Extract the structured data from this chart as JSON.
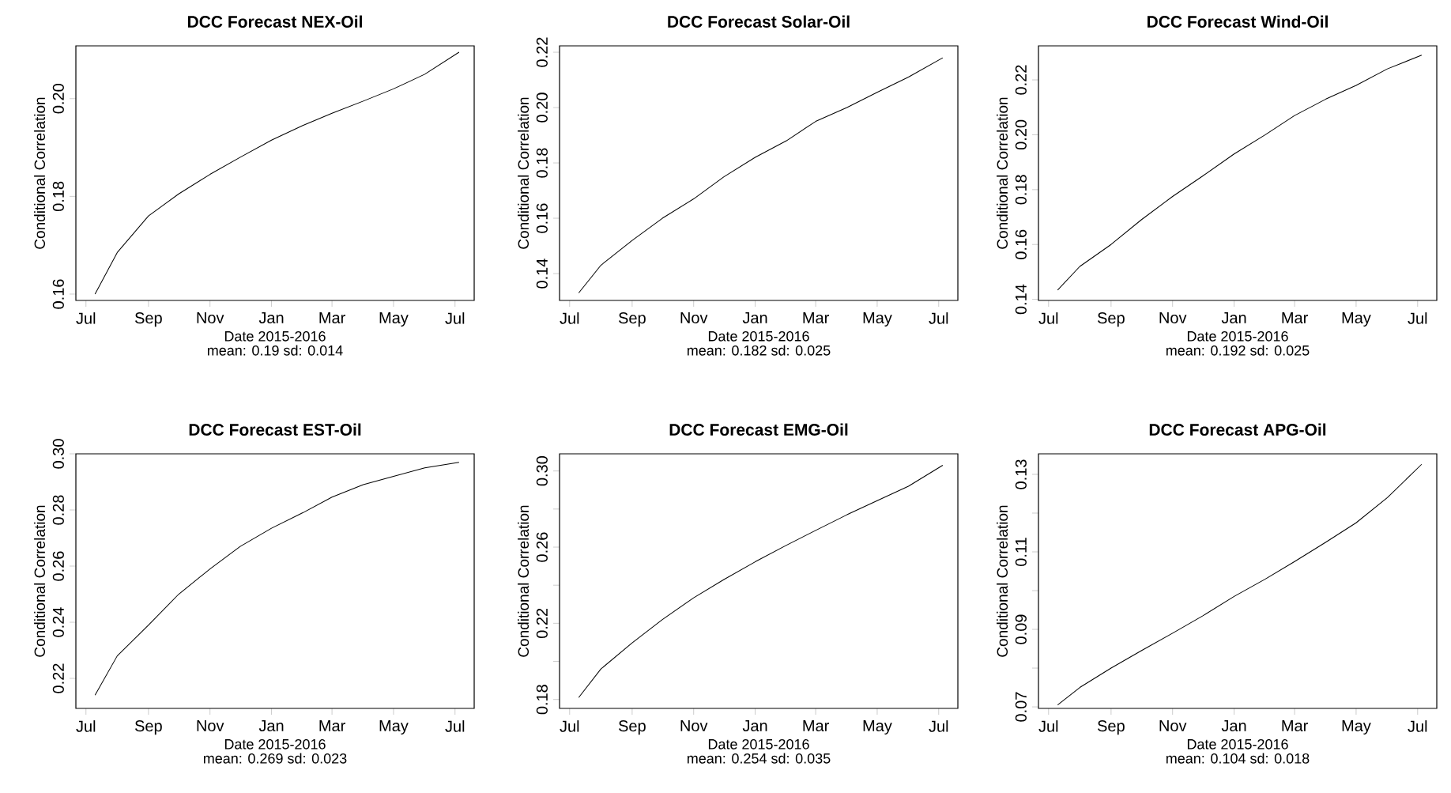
{
  "chart_data": [
    {
      "type": "line",
      "title": "DCC Forecast NEX-Oil",
      "xlabel": "Date 2015-2016",
      "ylabel": "Conditional Correlation",
      "annotations": [
        "mean: 0.19 sd: 0.014"
      ],
      "color": "#000000",
      "x": [
        "2015-07-10",
        "2015-08-01",
        "2015-09-01",
        "2015-10-01",
        "2015-11-01",
        "2015-12-01",
        "2016-01-01",
        "2016-02-01",
        "2016-03-01",
        "2016-04-01",
        "2016-05-01",
        "2016-06-01",
        "2016-07-05"
      ],
      "values": [
        0.16,
        0.1685,
        0.176,
        0.1805,
        0.1845,
        0.188,
        0.1915,
        0.1945,
        0.197,
        0.1995,
        0.202,
        0.205,
        0.2095
      ],
      "xlim": [
        "2015-06-21",
        "2016-07-20"
      ],
      "ylim": [
        0.1587,
        0.2108
      ],
      "xticks": [
        {
          "value": "2015-07-01",
          "label": "Jul"
        },
        {
          "value": "2015-09-01",
          "label": "Sep"
        },
        {
          "value": "2015-11-01",
          "label": "Nov"
        },
        {
          "value": "2016-01-01",
          "label": "Jan"
        },
        {
          "value": "2016-03-01",
          "label": "Mar"
        },
        {
          "value": "2016-05-01",
          "label": "May"
        },
        {
          "value": "2016-07-01",
          "label": "Jul"
        }
      ],
      "yticks": [
        {
          "value": 0.16,
          "label": "0.16"
        },
        {
          "value": 0.18,
          "label": "0.18"
        },
        {
          "value": 0.2,
          "label": "0.20"
        }
      ]
    },
    {
      "type": "line",
      "title": "DCC Forecast Solar-Oil",
      "xlabel": "Date 2015-2016",
      "ylabel": "Conditional Correlation",
      "annotations": [
        "mean: 0.182 sd: 0.025"
      ],
      "color": "#000000",
      "x": [
        "2015-07-10",
        "2015-08-01",
        "2015-09-01",
        "2015-10-01",
        "2015-11-01",
        "2015-12-01",
        "2016-01-01",
        "2016-02-01",
        "2016-03-01",
        "2016-04-01",
        "2016-05-01",
        "2016-06-01",
        "2016-07-05"
      ],
      "values": [
        0.133,
        0.143,
        0.152,
        0.16,
        0.167,
        0.175,
        0.182,
        0.188,
        0.195,
        0.2,
        0.2055,
        0.211,
        0.218
      ],
      "xlim": [
        "2015-06-21",
        "2016-07-20"
      ],
      "ylim": [
        0.1303,
        0.2223
      ],
      "xticks": [
        {
          "value": "2015-07-01",
          "label": "Jul"
        },
        {
          "value": "2015-09-01",
          "label": "Sep"
        },
        {
          "value": "2015-11-01",
          "label": "Nov"
        },
        {
          "value": "2016-01-01",
          "label": "Jan"
        },
        {
          "value": "2016-03-01",
          "label": "Mar"
        },
        {
          "value": "2016-05-01",
          "label": "May"
        },
        {
          "value": "2016-07-01",
          "label": "Jul"
        }
      ],
      "yticks": [
        {
          "value": 0.14,
          "label": "0.14"
        },
        {
          "value": 0.16,
          "label": "0.16"
        },
        {
          "value": 0.18,
          "label": "0.18"
        },
        {
          "value": 0.2,
          "label": "0.20"
        },
        {
          "value": 0.22,
          "label": "0.22"
        }
      ]
    },
    {
      "type": "line",
      "title": "DCC Forecast Wind-Oil",
      "xlabel": "Date 2015-2016",
      "ylabel": "Conditional Correlation",
      "annotations": [
        "mean: 0.192 sd: 0.025"
      ],
      "color": "#000000",
      "x": [
        "2015-07-10",
        "2015-08-01",
        "2015-09-01",
        "2015-10-01",
        "2015-11-01",
        "2015-12-01",
        "2016-01-01",
        "2016-02-01",
        "2016-03-01",
        "2016-04-01",
        "2016-05-01",
        "2016-06-01",
        "2016-07-05"
      ],
      "values": [
        0.1434,
        0.152,
        0.16,
        0.169,
        0.1775,
        0.185,
        0.193,
        0.2,
        0.207,
        0.213,
        0.218,
        0.224,
        0.229
      ],
      "xlim": [
        "2015-06-21",
        "2016-07-20"
      ],
      "ylim": [
        0.1396,
        0.2324
      ],
      "xticks": [
        {
          "value": "2015-07-01",
          "label": "Jul"
        },
        {
          "value": "2015-09-01",
          "label": "Sep"
        },
        {
          "value": "2015-11-01",
          "label": "Nov"
        },
        {
          "value": "2016-01-01",
          "label": "Jan"
        },
        {
          "value": "2016-03-01",
          "label": "Mar"
        },
        {
          "value": "2016-05-01",
          "label": "May"
        },
        {
          "value": "2016-07-01",
          "label": "Jul"
        }
      ],
      "yticks": [
        {
          "value": 0.14,
          "label": "0.14"
        },
        {
          "value": 0.16,
          "label": "0.16"
        },
        {
          "value": 0.18,
          "label": "0.18"
        },
        {
          "value": 0.2,
          "label": "0.20"
        },
        {
          "value": 0.22,
          "label": "0.22"
        }
      ]
    },
    {
      "type": "line",
      "title": "DCC Forecast EST-Oil",
      "xlabel": "Date 2015-2016",
      "ylabel": "Conditional Correlation",
      "annotations": [
        "mean: 0.269 sd: 0.023"
      ],
      "color": "#000000",
      "x": [
        "2015-07-10",
        "2015-08-01",
        "2015-09-01",
        "2015-10-01",
        "2015-11-01",
        "2015-12-01",
        "2016-01-01",
        "2016-02-01",
        "2016-03-01",
        "2016-04-01",
        "2016-05-01",
        "2016-06-01",
        "2016-07-05"
      ],
      "values": [
        0.214,
        0.228,
        0.239,
        0.25,
        0.259,
        0.267,
        0.2735,
        0.279,
        0.2846,
        0.289,
        0.292,
        0.295,
        0.297
      ],
      "xlim": [
        "2015-06-21",
        "2016-07-20"
      ],
      "ylim": [
        0.2093,
        0.3
      ],
      "xticks": [
        {
          "value": "2015-07-01",
          "label": "Jul"
        },
        {
          "value": "2015-09-01",
          "label": "Sep"
        },
        {
          "value": "2015-11-01",
          "label": "Nov"
        },
        {
          "value": "2016-01-01",
          "label": "Jan"
        },
        {
          "value": "2016-03-01",
          "label": "Mar"
        },
        {
          "value": "2016-05-01",
          "label": "May"
        },
        {
          "value": "2016-07-01",
          "label": "Jul"
        }
      ],
      "yticks": [
        {
          "value": 0.22,
          "label": "0.22"
        },
        {
          "value": 0.24,
          "label": "0.24"
        },
        {
          "value": 0.26,
          "label": "0.26"
        },
        {
          "value": 0.28,
          "label": "0.28"
        },
        {
          "value": 0.3,
          "label": "0.30"
        }
      ]
    },
    {
      "type": "line",
      "title": "DCC Forecast EMG-Oil",
      "xlabel": "Date 2015-2016",
      "ylabel": "Conditional Correlation",
      "annotations": [
        "mean: 0.254 sd: 0.035"
      ],
      "color": "#000000",
      "x": [
        "2015-07-10",
        "2015-08-01",
        "2015-09-01",
        "2015-10-01",
        "2015-11-01",
        "2015-12-01",
        "2016-01-01",
        "2016-02-01",
        "2016-03-01",
        "2016-04-01",
        "2016-05-01",
        "2016-06-01",
        "2016-07-05"
      ],
      "values": [
        0.181,
        0.196,
        0.2097,
        0.222,
        0.2334,
        0.243,
        0.2523,
        0.261,
        0.2688,
        0.277,
        0.2844,
        0.292,
        0.303
      ],
      "xlim": [
        "2015-06-21",
        "2016-07-20"
      ],
      "ylim": [
        0.1753,
        0.309
      ],
      "xticks": [
        {
          "value": "2015-07-01",
          "label": "Jul"
        },
        {
          "value": "2015-09-01",
          "label": "Sep"
        },
        {
          "value": "2015-11-01",
          "label": "Nov"
        },
        {
          "value": "2016-01-01",
          "label": "Jan"
        },
        {
          "value": "2016-03-01",
          "label": "Mar"
        },
        {
          "value": "2016-05-01",
          "label": "May"
        },
        {
          "value": "2016-07-01",
          "label": "Jul"
        }
      ],
      "yticks": [
        {
          "value": 0.18,
          "label": "0.18"
        },
        {
          "value": 0.2,
          "label": null
        },
        {
          "value": 0.22,
          "label": "0.22"
        },
        {
          "value": 0.24,
          "label": null
        },
        {
          "value": 0.26,
          "label": "0.26"
        },
        {
          "value": 0.28,
          "label": null
        },
        {
          "value": 0.3,
          "label": "0.30"
        }
      ]
    },
    {
      "type": "line",
      "title": "DCC Forecast APG-Oil",
      "xlabel": "Date 2015-2016",
      "ylabel": "Conditional Correlation",
      "annotations": [
        "mean: 0.104 sd: 0.018"
      ],
      "color": "#000000",
      "x": [
        "2015-07-10",
        "2015-08-01",
        "2015-09-01",
        "2015-10-01",
        "2015-11-01",
        "2015-12-01",
        "2016-01-01",
        "2016-02-01",
        "2016-03-01",
        "2016-04-01",
        "2016-05-01",
        "2016-06-01",
        "2016-07-05"
      ],
      "values": [
        0.0705,
        0.075,
        0.08,
        0.0845,
        0.089,
        0.0935,
        0.0985,
        0.103,
        0.1075,
        0.1125,
        0.1175,
        0.124,
        0.1326
      ],
      "xlim": [
        "2015-06-21",
        "2016-07-20"
      ],
      "ylim": [
        0.0696,
        0.1353
      ],
      "xticks": [
        {
          "value": "2015-07-01",
          "label": "Jul"
        },
        {
          "value": "2015-09-01",
          "label": "Sep"
        },
        {
          "value": "2015-11-01",
          "label": "Nov"
        },
        {
          "value": "2016-01-01",
          "label": "Jan"
        },
        {
          "value": "2016-03-01",
          "label": "Mar"
        },
        {
          "value": "2016-05-01",
          "label": "May"
        },
        {
          "value": "2016-07-01",
          "label": "Jul"
        }
      ],
      "yticks": [
        {
          "value": 0.07,
          "label": "0.07"
        },
        {
          "value": 0.08,
          "label": null
        },
        {
          "value": 0.09,
          "label": "0.09"
        },
        {
          "value": 0.1,
          "label": null
        },
        {
          "value": 0.11,
          "label": "0.11"
        },
        {
          "value": 0.12,
          "label": null
        },
        {
          "value": 0.13,
          "label": "0.13"
        }
      ]
    }
  ]
}
